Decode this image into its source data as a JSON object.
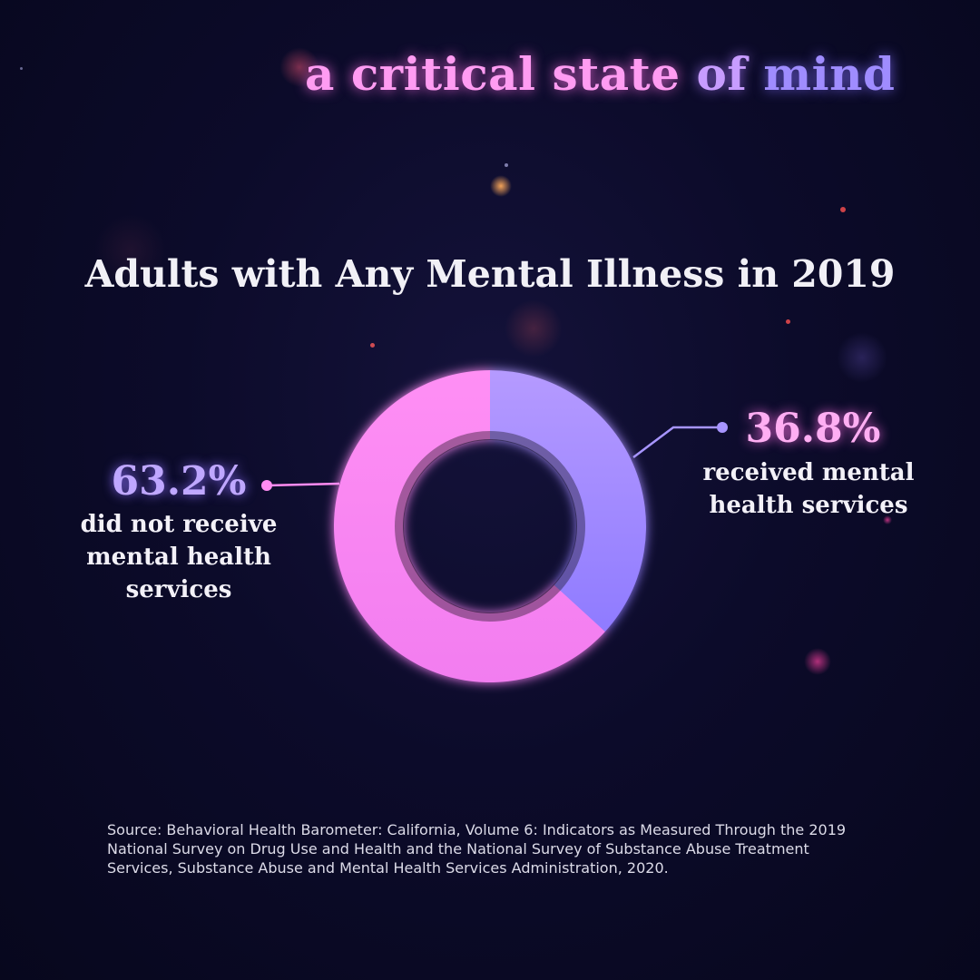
{
  "brand": {
    "words": [
      "a",
      "critical",
      "state",
      "of",
      "mind"
    ]
  },
  "colors": {
    "background": "#0c0b2a",
    "pink": "#ff8cf2",
    "purple": "#9c86ff",
    "text": "#f1f0f6"
  },
  "chart_data": {
    "type": "pie",
    "variant": "donut",
    "title": "Adults with Any Mental Illness in 2019",
    "slices": [
      {
        "label": "received mental health services",
        "value": 36.8,
        "value_label": "36.8%",
        "color": "#a98cff"
      },
      {
        "label": "did not receive mental health services",
        "value": 63.2,
        "value_label": "63.2%",
        "color": "#ff8cf2"
      }
    ],
    "start_angle_deg": 0,
    "direction": "clockwise"
  },
  "callouts": {
    "left": {
      "pct": "63.2%",
      "lines": [
        "did not receive",
        "mental health",
        "services"
      ]
    },
    "right": {
      "pct": "36.8%",
      "lines": [
        "received mental",
        "health services"
      ]
    }
  },
  "source": "Source: Behavioral Health Barometer: California, Volume 6: Indicators as Measured Through the 2019 National Survey on Drug Use and Health and the National Survey of Substance Abuse Treatment Services, Substance Abuse and Mental Health Services Administration, 2020."
}
